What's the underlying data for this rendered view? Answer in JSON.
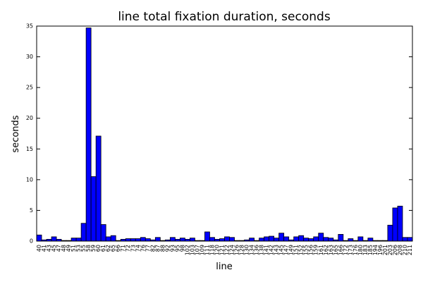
{
  "chart_data": {
    "type": "bar",
    "title": "line total fixation duration, seconds",
    "xlabel": "line",
    "ylabel": "seconds",
    "color": "#0000ff",
    "categories": [
      "40",
      "41",
      "43",
      "45",
      "47",
      "48",
      "49",
      "51",
      "53",
      "55",
      "58",
      "59",
      "60",
      "61",
      "62",
      "65",
      "66",
      "71",
      "72",
      "73",
      "74",
      "76",
      "77",
      "82",
      "87",
      "88",
      "92",
      "93",
      "95",
      "98",
      "102",
      "103",
      "107",
      "109",
      "111",
      "118",
      "120",
      "121",
      "122",
      "124",
      "126",
      "128",
      "130",
      "134",
      "136",
      "138",
      "141",
      "142",
      "143",
      "145",
      "147",
      "149",
      "151",
      "152",
      "155",
      "156",
      "159",
      "161",
      "162",
      "163",
      "165",
      "166",
      "172",
      "173",
      "176",
      "180",
      "183",
      "185",
      "194",
      "196",
      "201",
      "203",
      "206",
      "208",
      "210",
      "211"
    ],
    "values": [
      1.0,
      0.2,
      0.3,
      0.7,
      0.3,
      0.1,
      0.1,
      0.5,
      0.5,
      2.9,
      34.7,
      10.5,
      17.1,
      2.7,
      0.7,
      0.9,
      0.1,
      0.3,
      0.4,
      0.4,
      0.4,
      0.6,
      0.4,
      0.2,
      0.6,
      0.1,
      0.2,
      0.6,
      0.3,
      0.5,
      0.3,
      0.5,
      0.1,
      0.1,
      1.5,
      0.6,
      0.3,
      0.4,
      0.7,
      0.6,
      0.1,
      0.1,
      0.2,
      0.5,
      0.1,
      0.5,
      0.7,
      0.8,
      0.5,
      1.3,
      0.7,
      0.2,
      0.7,
      0.9,
      0.5,
      0.4,
      0.7,
      1.3,
      0.6,
      0.5,
      0.2,
      1.1,
      0.1,
      0.4,
      0.1,
      0.7,
      0.1,
      0.5,
      0.1,
      0.1,
      0.1,
      2.6,
      5.4,
      5.7,
      0.6,
      0.6
    ],
    "ylim": [
      0,
      35
    ],
    "yticks": [
      0,
      5,
      10,
      15,
      20,
      25,
      30,
      35
    ],
    "grid": false
  }
}
